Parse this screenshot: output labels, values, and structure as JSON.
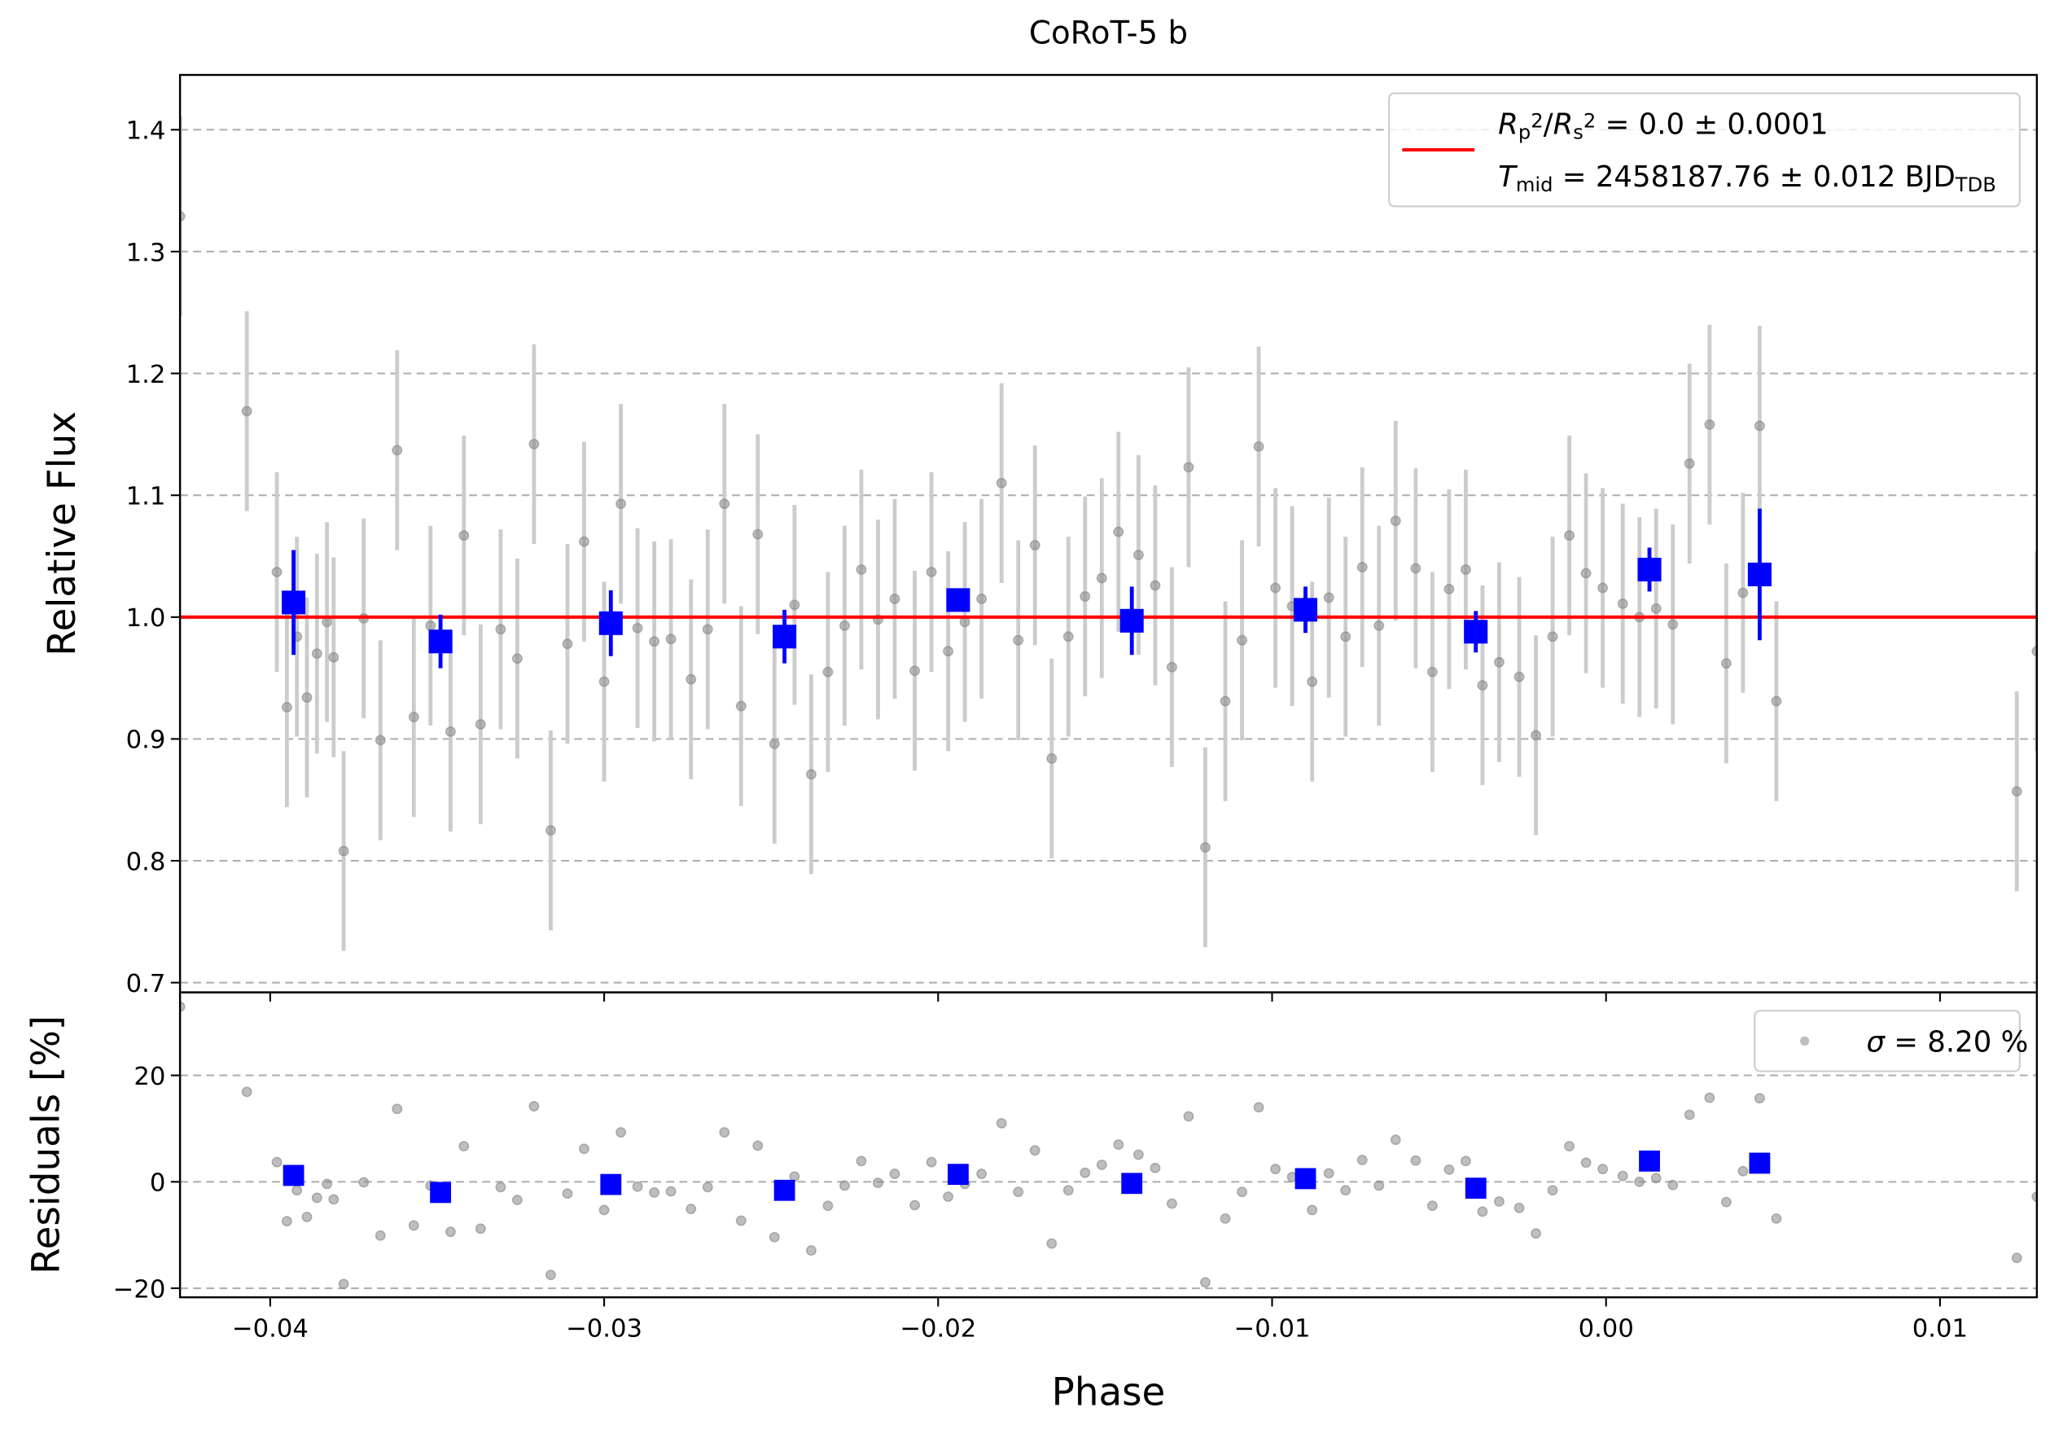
{
  "chart_data": [
    {
      "type": "scatter",
      "title": "CoRoT-5 b",
      "ylabel": "Relative Flux",
      "xlim": [
        -0.0427,
        0.0129
      ],
      "ylim": [
        0.692,
        1.445
      ],
      "yticks": [
        0.7,
        0.8,
        0.9,
        {
          "value": 1.0,
          "label": "1.0"
        },
        1.1,
        1.2,
        1.3,
        1.4
      ],
      "grid": true,
      "legend": "upper right",
      "series": [
        {
          "style": "errorbar",
          "color": "#888888",
          "error_color": "#cccccc",
          "x": [
            -0.0427,
            -0.0407,
            -0.0398,
            -0.0395,
            -0.0392,
            -0.0389,
            -0.0386,
            -0.0383,
            -0.0381,
            -0.0378,
            -0.0372,
            -0.0367,
            -0.0362,
            -0.0357,
            -0.0352,
            -0.0346,
            -0.0342,
            -0.0337,
            -0.0331,
            -0.0326,
            -0.0321,
            -0.0316,
            -0.0311,
            -0.0306,
            -0.03,
            -0.0295,
            -0.029,
            -0.0285,
            -0.028,
            -0.0274,
            -0.0269,
            -0.0264,
            -0.0259,
            -0.0254,
            -0.0249,
            -0.0243,
            -0.0238,
            -0.0233,
            -0.0228,
            -0.0223,
            -0.0218,
            -0.0213,
            -0.0207,
            -0.0202,
            -0.0197,
            -0.0192,
            -0.0187,
            -0.0181,
            -0.0176,
            -0.0171,
            -0.0166,
            -0.0161,
            -0.0156,
            -0.0151,
            -0.0146,
            -0.014,
            -0.0135,
            -0.013,
            -0.0125,
            -0.012,
            -0.0114,
            -0.0109,
            -0.0104,
            -0.0099,
            -0.0094,
            -0.0088,
            -0.0083,
            -0.0078,
            -0.0073,
            -0.0068,
            -0.0063,
            -0.0057,
            -0.0052,
            -0.0047,
            -0.0042,
            -0.0037,
            -0.0032,
            -0.0026,
            -0.0021,
            -0.0016,
            -0.0011,
            -0.0006,
            -0.0001,
            0.0005,
            0.001,
            0.0015,
            0.002,
            0.0025,
            0.0031,
            0.0036,
            0.0041,
            0.0046,
            0.0051,
            0.0123,
            0.0129
          ],
          "values": [
            1.329,
            1.169,
            1.037,
            0.926,
            0.984,
            0.934,
            0.97,
            0.996,
            0.967,
            0.808,
            0.999,
            0.899,
            1.137,
            0.918,
            0.993,
            0.906,
            1.067,
            0.912,
            0.99,
            0.966,
            1.142,
            0.825,
            0.978,
            1.062,
            0.947,
            1.093,
            0.991,
            0.98,
            0.982,
            0.949,
            0.99,
            1.093,
            0.927,
            1.068,
            0.896,
            1.01,
            0.871,
            0.955,
            0.993,
            1.039,
            0.998,
            1.015,
            0.956,
            1.037,
            0.972,
            0.996,
            1.015,
            1.11,
            0.981,
            1.059,
            0.884,
            0.984,
            1.017,
            1.032,
            1.07,
            1.051,
            1.026,
            0.959,
            1.123,
            0.811,
            0.931,
            0.981,
            1.14,
            1.024,
            1.009,
            0.947,
            1.016,
            0.984,
            1.041,
            0.993,
            1.079,
            1.04,
            0.955,
            1.023,
            1.039,
            0.944,
            0.963,
            0.951,
            0.903,
            0.984,
            1.067,
            1.036,
            1.024,
            1.011,
            1.0,
            1.007,
            0.994,
            1.126,
            1.158,
            0.962,
            1.02,
            1.157,
            0.931,
            0.857,
            0.972
          ],
          "errors": [
            0.082,
            0.082,
            0.082,
            0.082,
            0.082,
            0.082,
            0.082,
            0.082,
            0.082,
            0.082,
            0.082,
            0.082,
            0.082,
            0.082,
            0.082,
            0.082,
            0.082,
            0.082,
            0.082,
            0.082,
            0.082,
            0.082,
            0.082,
            0.082,
            0.082,
            0.082,
            0.082,
            0.082,
            0.082,
            0.082,
            0.082,
            0.082,
            0.082,
            0.082,
            0.082,
            0.082,
            0.082,
            0.082,
            0.082,
            0.082,
            0.082,
            0.082,
            0.082,
            0.082,
            0.082,
            0.082,
            0.082,
            0.082,
            0.082,
            0.082,
            0.082,
            0.082,
            0.082,
            0.082,
            0.082,
            0.082,
            0.082,
            0.082,
            0.082,
            0.082,
            0.082,
            0.082,
            0.082,
            0.082,
            0.082,
            0.082,
            0.082,
            0.082,
            0.082,
            0.082,
            0.082,
            0.082,
            0.082,
            0.082,
            0.082,
            0.082,
            0.082,
            0.082,
            0.082,
            0.082,
            0.082,
            0.082,
            0.082,
            0.082,
            0.082,
            0.082,
            0.082,
            0.082,
            0.082,
            0.082,
            0.082,
            0.082,
            0.082,
            0.082,
            0.082
          ]
        },
        {
          "style": "line",
          "color": "#ff0000",
          "name": [
            [
              {
                "t": "R",
                "s": "i"
              },
              {
                "t": "p",
                "s": "sub"
              },
              {
                "t": "2",
                "s": "sup"
              },
              {
                "t": "/"
              },
              {
                "t": "R",
                "s": "i"
              },
              {
                "t": "s",
                "s": "sub"
              },
              {
                "t": "2",
                "s": "sup"
              },
              {
                "t": " = 0.0 ± 0.0001"
              }
            ],
            [
              {
                "t": "T",
                "s": "i"
              },
              {
                "t": "mid",
                "s": "sub"
              },
              {
                "t": " = 2458187.76 ± 0.012 BJD"
              },
              {
                "t": "TDB",
                "s": "sub"
              }
            ]
          ],
          "x": [
            -0.0427,
            0.0129
          ],
          "values": [
            1.0,
            1.0
          ]
        },
        {
          "style": "square-errorbar",
          "color": "#0000ff",
          "error_color": "#0000ff",
          "x": [
            -0.0393,
            -0.0349,
            -0.0298,
            -0.0246,
            -0.0194,
            -0.0142,
            -0.009,
            -0.0039,
            0.0013,
            0.0046
          ],
          "values": [
            1.012,
            0.98,
            0.995,
            0.984,
            1.014,
            0.997,
            1.006,
            0.988,
            1.039,
            1.035
          ],
          "errors": [
            0.043,
            0.022,
            0.027,
            0.022,
            0.008,
            0.028,
            0.019,
            0.017,
            0.018,
            0.054
          ]
        }
      ]
    },
    {
      "type": "scatter",
      "ylabel": "Residuals [%]",
      "xlabel": "Phase",
      "xlim": [
        -0.0427,
        0.0129
      ],
      "ylim": [
        -21.7,
        35.6
      ],
      "xticks": [
        {
          "value": -0.04,
          "label": "−0.04"
        },
        {
          "value": -0.03,
          "label": "−0.03"
        },
        {
          "value": -0.02,
          "label": "−0.02"
        },
        {
          "value": -0.01,
          "label": "−0.01"
        },
        {
          "value": 0,
          "label": "0.00"
        },
        0.01
      ],
      "yticks": [
        {
          "value": -20,
          "label": "−20"
        },
        0,
        20
      ],
      "grid": true,
      "legend": "upper right",
      "series": [
        {
          "style": "point",
          "color": "#888888",
          "name": [
            [
              {
                "t": "σ",
                "s": "i"
              },
              {
                "t": " = 8.20 %"
              }
            ]
          ],
          "x": [
            -0.0427,
            -0.0407,
            -0.0398,
            -0.0395,
            -0.0392,
            -0.0389,
            -0.0386,
            -0.0383,
            -0.0381,
            -0.0378,
            -0.0372,
            -0.0367,
            -0.0362,
            -0.0357,
            -0.0352,
            -0.0346,
            -0.0342,
            -0.0337,
            -0.0331,
            -0.0326,
            -0.0321,
            -0.0316,
            -0.0311,
            -0.0306,
            -0.03,
            -0.0295,
            -0.029,
            -0.0285,
            -0.028,
            -0.0274,
            -0.0269,
            -0.0264,
            -0.0259,
            -0.0254,
            -0.0249,
            -0.0243,
            -0.0238,
            -0.0233,
            -0.0228,
            -0.0223,
            -0.0218,
            -0.0213,
            -0.0207,
            -0.0202,
            -0.0197,
            -0.0192,
            -0.0187,
            -0.0181,
            -0.0176,
            -0.0171,
            -0.0166,
            -0.0161,
            -0.0156,
            -0.0151,
            -0.0146,
            -0.014,
            -0.0135,
            -0.013,
            -0.0125,
            -0.012,
            -0.0114,
            -0.0109,
            -0.0104,
            -0.0099,
            -0.0094,
            -0.0088,
            -0.0083,
            -0.0078,
            -0.0073,
            -0.0068,
            -0.0063,
            -0.0057,
            -0.0052,
            -0.0047,
            -0.0042,
            -0.0037,
            -0.0032,
            -0.0026,
            -0.0021,
            -0.0016,
            -0.0011,
            -0.0006,
            -0.0001,
            0.0005,
            0.001,
            0.0015,
            0.002,
            0.0025,
            0.0031,
            0.0036,
            0.0041,
            0.0046,
            0.0051,
            0.0123,
            0.0129
          ],
          "values": [
            32.9,
            16.9,
            3.7,
            -7.4,
            -1.6,
            -6.6,
            -3.0,
            -0.4,
            -3.3,
            -19.2,
            -0.1,
            -10.1,
            13.7,
            -8.2,
            -0.7,
            -9.4,
            6.7,
            -8.8,
            -1.0,
            -3.4,
            14.2,
            -17.5,
            -2.2,
            6.2,
            -5.3,
            9.3,
            -0.9,
            -2.0,
            -1.8,
            -5.1,
            -1.0,
            9.3,
            -7.3,
            6.8,
            -10.4,
            1.0,
            -12.9,
            -4.5,
            -0.7,
            3.9,
            -0.2,
            1.5,
            -4.4,
            3.7,
            -2.8,
            -0.4,
            1.5,
            11.0,
            -1.9,
            5.9,
            -11.6,
            -1.6,
            1.7,
            3.2,
            7.0,
            5.1,
            2.6,
            -4.1,
            12.3,
            -18.9,
            -6.9,
            -1.9,
            14.0,
            2.4,
            0.9,
            -5.3,
            1.6,
            -1.6,
            4.1,
            -0.7,
            7.9,
            4.0,
            -4.5,
            2.3,
            3.9,
            -5.6,
            -3.7,
            -4.9,
            -9.7,
            -1.6,
            6.7,
            3.6,
            2.4,
            1.1,
            0.0,
            0.7,
            -0.6,
            12.6,
            15.8,
            -3.8,
            2.0,
            15.7,
            -6.9,
            -14.3,
            -2.8
          ]
        },
        {
          "style": "square",
          "color": "#0000ff",
          "x": [
            -0.0393,
            -0.0349,
            -0.0298,
            -0.0246,
            -0.0194,
            -0.0142,
            -0.009,
            -0.0039,
            0.0013,
            0.0046
          ],
          "values": [
            1.2,
            -2.0,
            -0.5,
            -1.6,
            1.4,
            -0.3,
            0.6,
            -1.2,
            3.9,
            3.5
          ]
        }
      ]
    }
  ]
}
